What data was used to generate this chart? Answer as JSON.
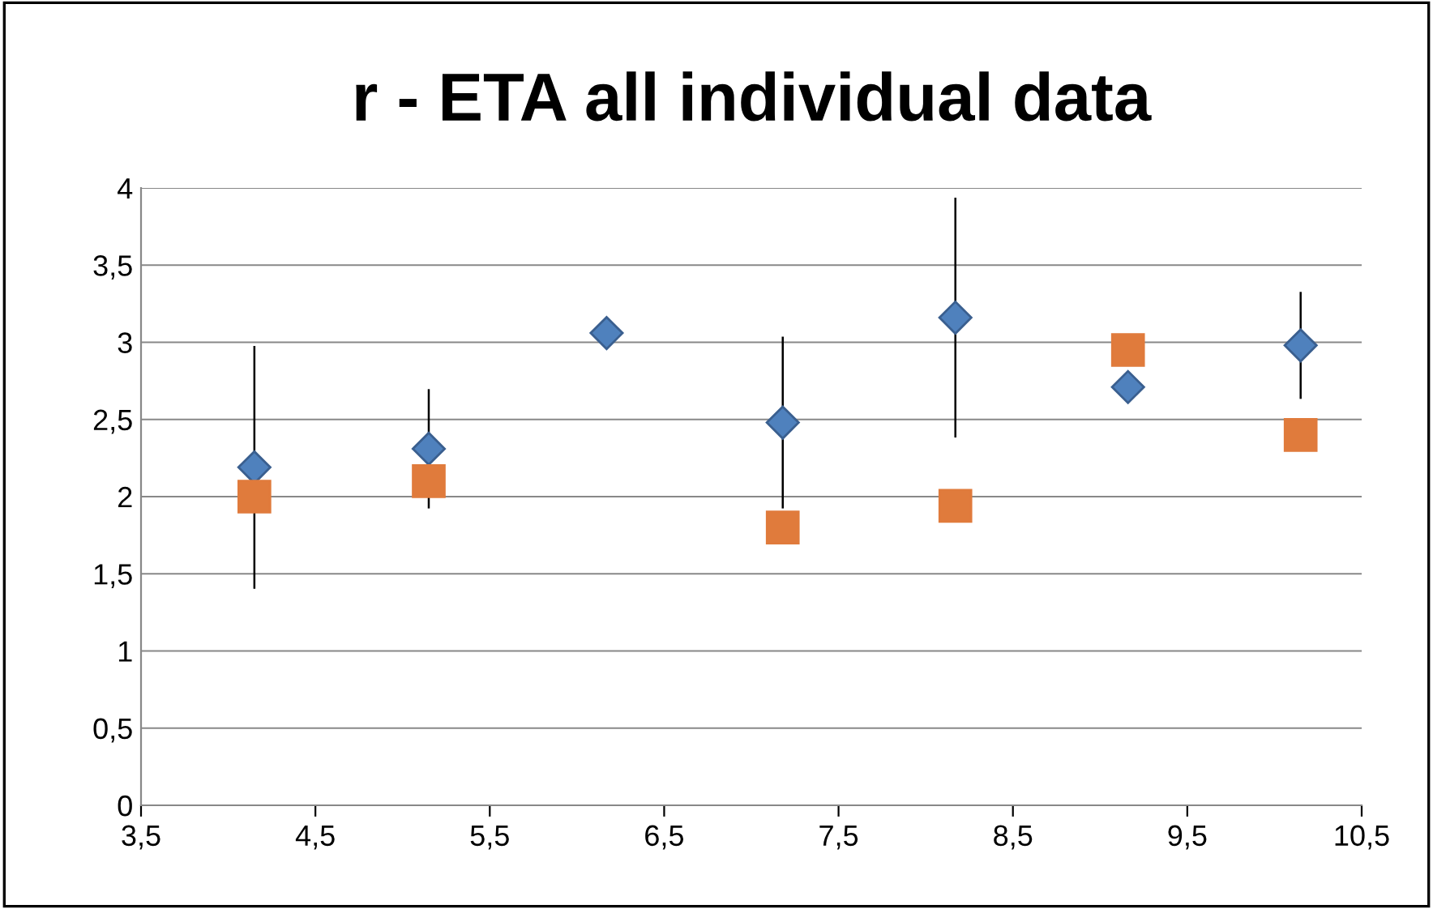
{
  "chart_data": {
    "type": "scatter",
    "title": "r - ETA all individual data",
    "series": [
      {
        "color": "#4f81bd",
        "marker": "diamond",
        "x": [
          4.15,
          5.15,
          6.17,
          7.18,
          8.17,
          9.16,
          10.15
        ],
        "values": [
          2.19,
          2.31,
          3.06,
          2.48,
          3.16,
          2.71,
          2.98
        ],
        "errors": [
          0.78,
          0.38,
          null,
          0.55,
          0.77,
          null,
          0.34
        ]
      },
      {
        "color": "#e07b3c",
        "marker": "square",
        "x": [
          4.15,
          5.15,
          7.18,
          8.17,
          9.16,
          10.15
        ],
        "values": [
          2.0,
          2.1,
          1.8,
          1.94,
          2.95,
          2.4
        ]
      }
    ],
    "xlim": [
      3.5,
      10.5
    ],
    "xticks": [
      {
        "value": 3.5,
        "label": "3,5"
      },
      {
        "value": 4.5,
        "label": "4,5"
      },
      {
        "value": 5.5,
        "label": "5,5"
      },
      {
        "value": 6.5,
        "label": "6,5"
      },
      {
        "value": 7.5,
        "label": "7,5"
      },
      {
        "value": 8.5,
        "label": "8,5"
      },
      {
        "value": 9.5,
        "label": "9,5"
      },
      {
        "value": 10.5,
        "label": "10,5"
      }
    ],
    "ylim": [
      0,
      4
    ],
    "yticks": [
      0,
      {
        "value": 0.5,
        "label": "0,5"
      },
      1,
      {
        "value": 1.5,
        "label": "1,5"
      },
      2,
      {
        "value": 2.5,
        "label": "2,5"
      },
      3,
      {
        "value": 3.5,
        "label": "3,5"
      },
      4
    ],
    "grid": "y",
    "legend": false
  }
}
